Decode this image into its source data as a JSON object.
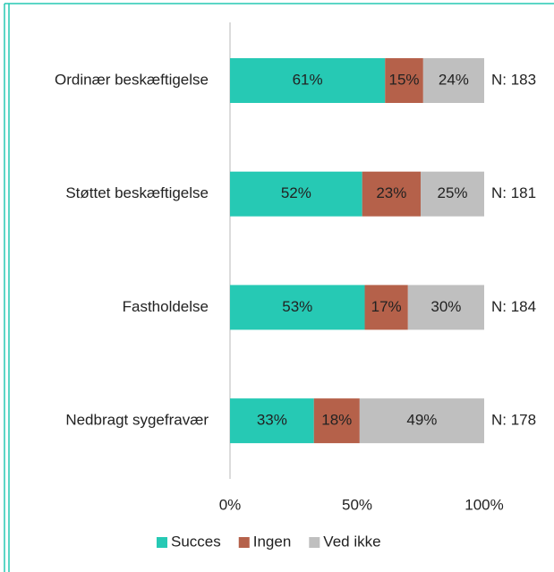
{
  "chart_data": {
    "type": "bar",
    "orientation": "horizontal",
    "stacked": true,
    "categories": [
      "Ordinær beskæftigelse",
      "Støttet beskæftigelse",
      "Fastholdelse",
      "Nedbragt sygefravær"
    ],
    "series": [
      {
        "name": "Succes",
        "color": "#26c9b4",
        "values": [
          61,
          52,
          53,
          33
        ],
        "value_labels": [
          "61%",
          "52%",
          "53%",
          "33%"
        ]
      },
      {
        "name": "Ingen",
        "color": "#b5614a",
        "values": [
          15,
          23,
          17,
          18
        ],
        "value_labels": [
          "15%",
          "23%",
          "17%",
          "18%"
        ]
      },
      {
        "name": "Ved ikke",
        "color": "#bfbfbf",
        "values": [
          24,
          25,
          30,
          49
        ],
        "value_labels": [
          "24%",
          "25%",
          "30%",
          "49%"
        ]
      }
    ],
    "annotations": [
      "N: 183",
      "N: 181",
      "N: 184",
      "N: 178"
    ],
    "xlim": [
      0,
      100
    ],
    "xticks": [
      {
        "value": 0,
        "label": "0%"
      },
      {
        "value": 50,
        "label": "50%"
      },
      {
        "value": 100,
        "label": "100%"
      }
    ],
    "legend": "bottom"
  }
}
